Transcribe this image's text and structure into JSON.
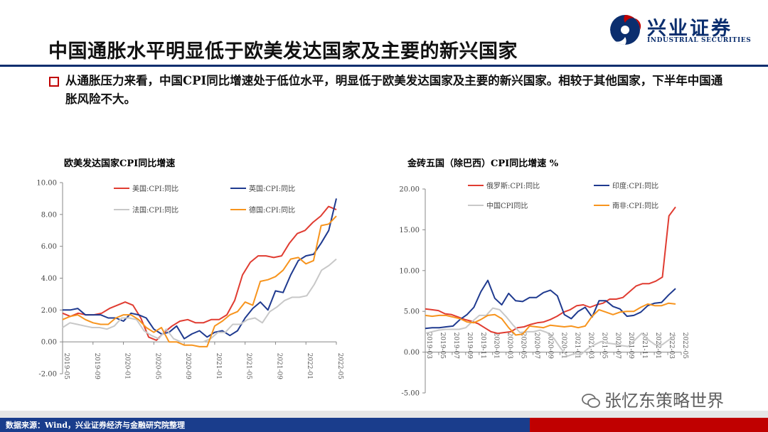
{
  "page": {
    "title": "中国通胀水平明显低于欧美发达国家及主要的新兴国家",
    "bullet": "从通胀压力来看，中国CPI同比增速处于低位水平，明显低于欧美发达国家及主要的新兴国家。相较于其他国家，下半年中国通胀风险不大。",
    "logo_text": "兴业证券",
    "logo_sub": "INDUSTRIAL SECURITIES",
    "footer": "数据来源：Wind，兴业证券经济与金融研究院整理",
    "watermark": "张忆东策略世界",
    "colors": {
      "red": "#e03c31",
      "blue": "#1f3a8f",
      "gray": "#c8c8c8",
      "orange": "#f7941d",
      "navy": "#0b2e6e"
    }
  },
  "chart_data": [
    {
      "type": "line",
      "title": "欧美发达国家CPI同比增速",
      "ylim": [
        -2,
        10
      ],
      "yticks": [
        "10.00",
        "8.00",
        "6.00",
        "4.00",
        "2.00",
        "0.00",
        "-2.00"
      ],
      "xticks": [
        "2019-05",
        "2019-09",
        "2020-01",
        "2020-05",
        "2020-09",
        "2021-01",
        "2021-05",
        "2021-09",
        "2022-01",
        "2022-05"
      ],
      "series": [
        {
          "name": "美国:CPI:同比",
          "color": "#e03c31",
          "values": [
            1.8,
            1.6,
            1.8,
            1.7,
            1.7,
            1.8,
            2.1,
            2.3,
            2.5,
            2.3,
            1.5,
            0.3,
            0.1,
            0.6,
            1.0,
            1.3,
            1.4,
            1.2,
            1.2,
            1.4,
            1.4,
            1.7,
            2.6,
            4.2,
            5.0,
            5.4,
            5.4,
            5.3,
            5.4,
            6.2,
            6.8,
            7.0,
            7.5,
            7.9,
            8.5,
            8.3
          ]
        },
        {
          "name": "英国:CPI:同比",
          "color": "#1f3a8f",
          "values": [
            2.0,
            2.0,
            2.1,
            1.7,
            1.7,
            1.7,
            1.5,
            1.5,
            1.3,
            1.8,
            1.7,
            1.5,
            0.8,
            0.5,
            0.6,
            1.0,
            0.2,
            0.5,
            0.7,
            0.3,
            0.6,
            0.7,
            0.4,
            0.7,
            1.5,
            2.1,
            2.5,
            2.0,
            3.2,
            3.1,
            4.2,
            5.1,
            5.4,
            5.5,
            6.2,
            7.0,
            9.0
          ]
        },
        {
          "name": "法国:CPI:同比",
          "color": "#c8c8c8",
          "values": [
            0.9,
            1.2,
            1.1,
            1.0,
            0.9,
            0.9,
            0.8,
            1.0,
            1.5,
            1.5,
            1.4,
            0.7,
            0.4,
            0.2,
            0.8,
            0.2,
            0.0,
            0.0,
            0.0,
            0.0,
            0.2,
            0.6,
            0.6,
            1.1,
            1.1,
            1.4,
            1.5,
            1.2,
            1.9,
            2.2,
            2.6,
            2.8,
            2.8,
            2.9,
            3.6,
            4.5,
            4.8,
            5.2
          ]
        },
        {
          "name": "德国:CPI:同比",
          "color": "#f7941d",
          "values": [
            1.4,
            1.6,
            1.7,
            1.4,
            1.2,
            1.1,
            1.1,
            1.5,
            1.7,
            1.7,
            1.4,
            0.9,
            0.6,
            0.9,
            0.0,
            0.0,
            -0.2,
            -0.2,
            -0.3,
            -0.3,
            1.0,
            1.3,
            1.7,
            1.9,
            2.5,
            2.3,
            3.8,
            3.9,
            4.1,
            4.5,
            5.2,
            5.3,
            4.9,
            5.1,
            7.3,
            7.4,
            7.9
          ]
        }
      ]
    },
    {
      "type": "line",
      "title": "金砖五国（除巴西）CPI同比增速 %",
      "ylim": [
        -5,
        20
      ],
      "yticks": [
        "20.00",
        "15.00",
        "10.00",
        "5.00",
        "0.00",
        "-5.00"
      ],
      "xticks": [
        "2019-03",
        "2019-05",
        "2019-07",
        "2019-09",
        "2019-11",
        "2020-01",
        "2020-03",
        "2020-05",
        "2020-07",
        "2020-09",
        "2020-11",
        "2021-01",
        "2021-03",
        "2021-05",
        "2021-07",
        "2021-09",
        "2021-11",
        "2022-01",
        "2022-03",
        "2022-05"
      ],
      "series": [
        {
          "name": "俄罗斯:CPI:同比",
          "color": "#e03c31",
          "values": [
            5.3,
            5.2,
            5.1,
            4.7,
            4.6,
            4.3,
            4.0,
            3.8,
            3.5,
            3.0,
            2.5,
            2.3,
            2.4,
            2.5,
            3.0,
            3.1,
            3.4,
            3.6,
            3.7,
            4.0,
            4.4,
            4.9,
            5.2,
            5.7,
            5.8,
            5.5,
            5.8,
            6.0,
            6.5,
            6.5,
            6.7,
            7.4,
            8.1,
            8.4,
            8.4,
            8.7,
            9.2,
            16.7,
            17.8
          ]
        },
        {
          "name": "印度:CPI:同比",
          "color": "#1f3a8f",
          "values": [
            2.9,
            3.0,
            3.0,
            3.1,
            3.2,
            4.0,
            4.6,
            5.5,
            7.4,
            8.8,
            6.6,
            5.8,
            7.2,
            6.3,
            6.2,
            6.7,
            6.7,
            7.3,
            7.6,
            6.9,
            4.6,
            4.1,
            5.0,
            5.5,
            4.3,
            6.3,
            6.3,
            5.6,
            5.3,
            4.4,
            4.5,
            4.9,
            5.7,
            6.0,
            6.1,
            7.0,
            7.8
          ]
        },
        {
          "name": "中国CPI同比",
          "color": "#c8c8c8",
          "values": [
            2.3,
            2.5,
            2.7,
            2.8,
            2.8,
            2.8,
            3.0,
            3.8,
            4.5,
            4.5,
            5.4,
            5.2,
            4.3,
            3.3,
            2.4,
            2.5,
            2.5,
            2.7,
            2.4,
            1.7,
            0.5,
            -0.5,
            -0.2,
            -0.3,
            0.4,
            0.9,
            1.3,
            1.1,
            1.0,
            0.8,
            0.7,
            1.5,
            2.3,
            1.5,
            0.9,
            0.9,
            1.5,
            2.1
          ]
        },
        {
          "name": "南非:CPI:同比",
          "color": "#f7941d",
          "values": [
            4.5,
            4.4,
            4.5,
            4.5,
            4.3,
            4.1,
            3.7,
            3.6,
            4.0,
            4.5,
            4.6,
            4.1,
            3.0,
            2.1,
            2.2,
            3.2,
            3.1,
            3.0,
            3.3,
            3.2,
            3.1,
            3.2,
            3.0,
            3.2,
            4.4,
            5.2,
            4.9,
            4.6,
            4.9,
            5.0,
            5.0,
            5.5,
            5.9,
            5.7,
            5.7,
            6.0,
            5.9
          ]
        }
      ]
    }
  ]
}
